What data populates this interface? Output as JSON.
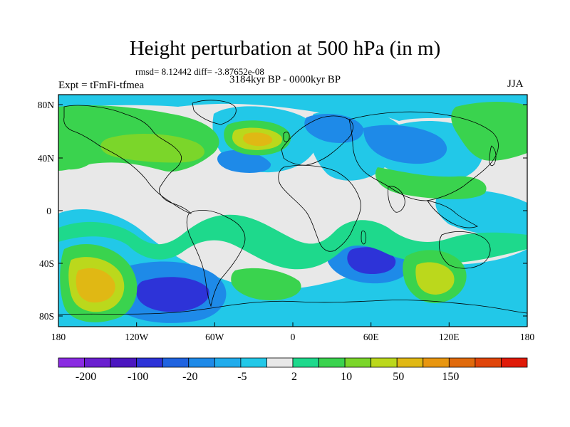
{
  "title": "Height perturbation at 500 hPa (in m)",
  "stats": "rmsd= 8.12442 diff= -3.87652e-08",
  "experiment": "Expt = tFmFi-tfmea",
  "period": "3184kyr BP - 0000kyr BP",
  "season": "JJA",
  "map": {
    "lat_labels": [
      "80N",
      "40N",
      "0",
      "40S",
      "80S"
    ],
    "lon_labels": [
      "180",
      "120W",
      "60W",
      "0",
      "60E",
      "120E",
      "180"
    ]
  },
  "colorbar": {
    "colors": [
      "#8a2be2",
      "#6a1fd0",
      "#4b16c0",
      "#2d33d8",
      "#1f63e0",
      "#1e8ae8",
      "#20acec",
      "#22c8e8",
      "#e8e8e8",
      "#1ed98c",
      "#3ad34e",
      "#7bd62a",
      "#bbd81c",
      "#e0b814",
      "#e89610",
      "#e06a0c",
      "#e0450a",
      "#e01a08"
    ],
    "labels": [
      "-200",
      "-100",
      "-20",
      "-5",
      "2",
      "10",
      "50",
      "150"
    ]
  },
  "field_colors": {
    "background": "#e8e8e8",
    "c1": "#22c8e8",
    "c2": "#1e8ae8",
    "c3": "#2d33d8",
    "w1": "#1ed98c",
    "w2": "#3ad34e",
    "w3": "#7bd62a",
    "w4": "#bbd81c",
    "w5": "#e0b814",
    "w6": "#e89610",
    "coast": "#000000"
  }
}
